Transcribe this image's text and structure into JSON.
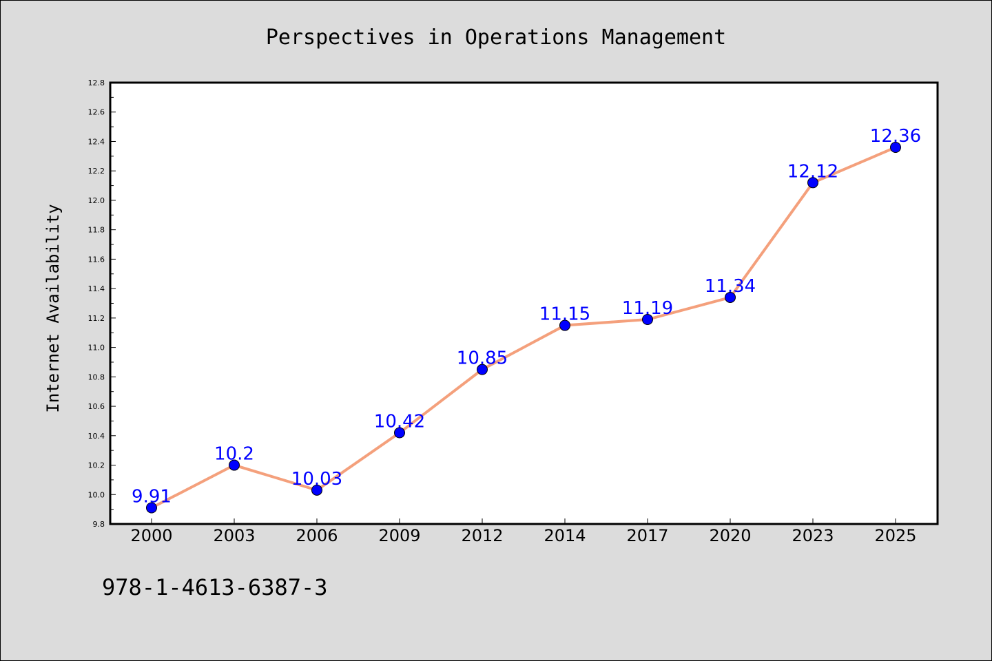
{
  "chart_data": {
    "type": "line",
    "title": "Perspectives in Operations Management",
    "xlabel": "",
    "ylabel": "Internet Availability",
    "categories": [
      "2000",
      "2003",
      "2006",
      "2009",
      "2012",
      "2014",
      "2017",
      "2020",
      "2023",
      "2025"
    ],
    "series": [
      {
        "values": [
          9.91,
          10.2,
          10.03,
          10.42,
          10.85,
          11.15,
          11.19,
          11.34,
          12.12,
          12.36
        ],
        "data_labels": [
          "9.91",
          "10.2",
          "10.03",
          "10.42",
          "10.85",
          "11.15",
          "11.19",
          "11.34",
          "12.12",
          "12.36"
        ],
        "line_color": "#f4a07c",
        "marker_color": "#0000ff",
        "label_color": "#0000ff"
      }
    ],
    "ylim": [
      9.8,
      12.8
    ],
    "yticks": [
      "9.8",
      "10.0",
      "10.2",
      "10.4",
      "10.6",
      "10.8",
      "11.0",
      "11.2",
      "11.4",
      "11.6",
      "11.8",
      "12.0",
      "12.2",
      "12.4",
      "12.6",
      "12.8"
    ],
    "grid": false,
    "legend": "none"
  },
  "footer": {
    "isbn": "978-1-4613-6387-3"
  },
  "colors": {
    "background": "#dcdcdc",
    "plot_background": "#ffffff",
    "line": "#f4a07c",
    "marker": "#0000ff",
    "label": "#0000ff"
  }
}
